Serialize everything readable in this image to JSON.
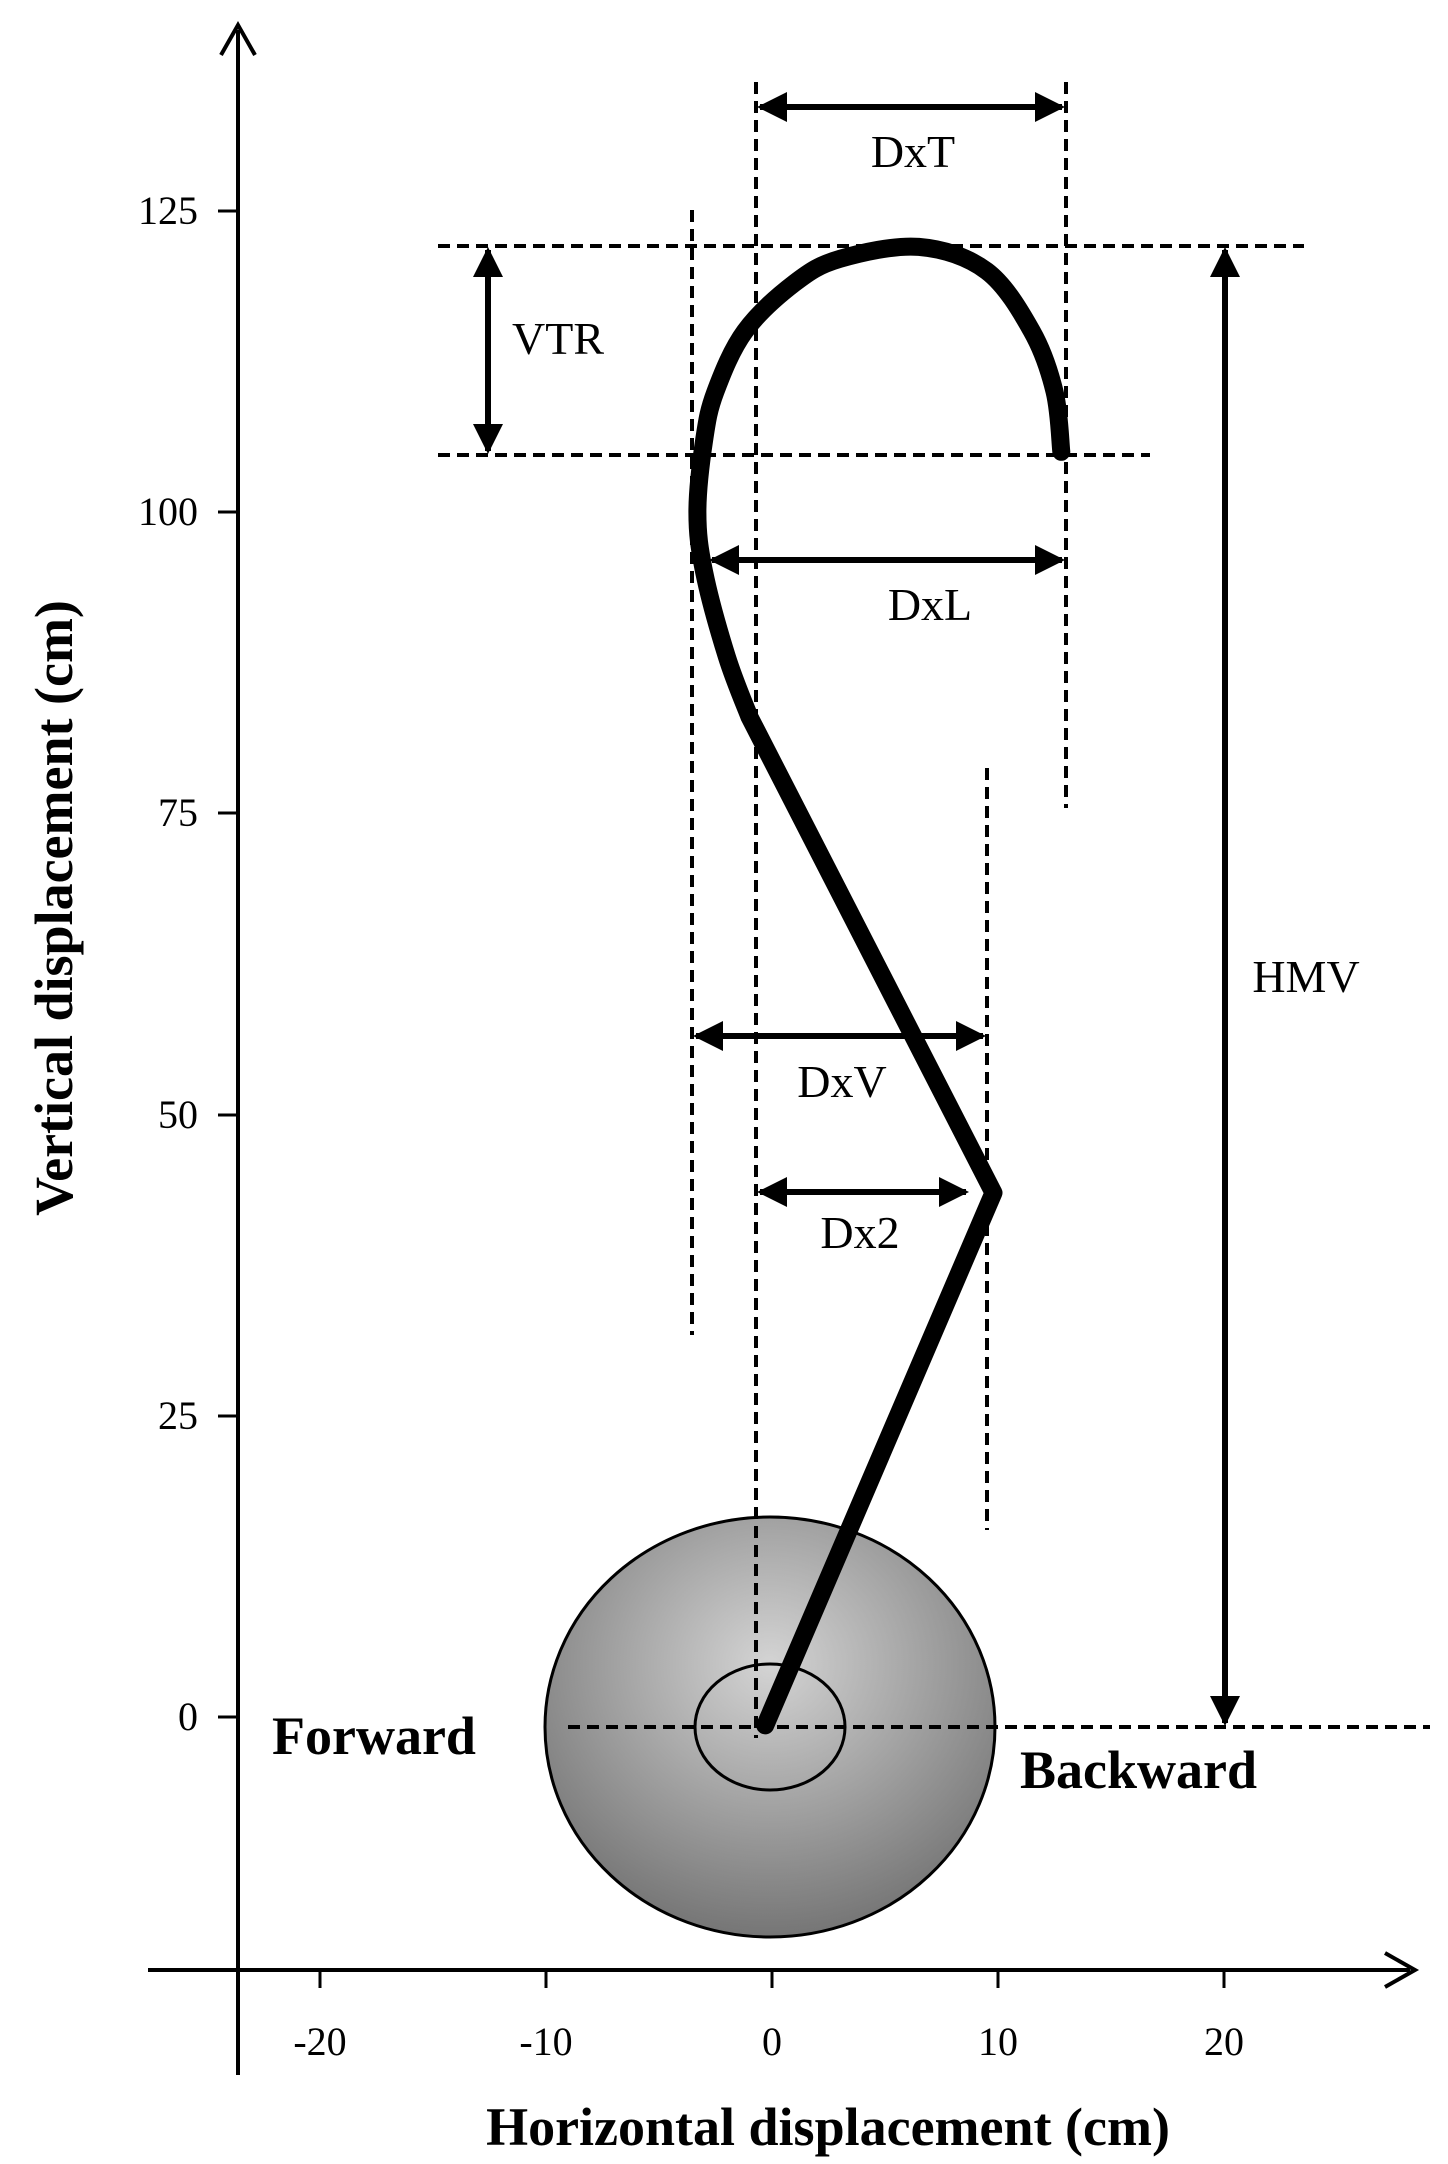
{
  "chart_data": {
    "type": "line",
    "title": "",
    "xlabel": "Horizontal displacement (cm)",
    "ylabel": "Vertical displacement (cm)",
    "x_ticks": [
      -20,
      -10,
      0,
      10,
      20
    ],
    "y_ticks": [
      0,
      25,
      50,
      75,
      100,
      125
    ],
    "grid": false,
    "series": [
      {
        "x": [
          -0.3,
          9.8,
          -1,
          -2,
          -3,
          -3.3,
          -3,
          -2.5,
          -1.2,
          1,
          3,
          6.5,
          9.5,
          11.5,
          12.5,
          12.8
        ],
        "y": [
          -0.7,
          43.5,
          83,
          88,
          95,
          100,
          106,
          110,
          115,
          119,
          121,
          122,
          120,
          115,
          110,
          105
        ]
      }
    ],
    "annotations": {
      "dxt": "DxT",
      "vtr": "VTR",
      "dxl": "DxL",
      "hmv": "HMV",
      "dxv": "DxV",
      "dx2": "Dx2",
      "forward": "Forward",
      "backward": "Backward"
    }
  }
}
